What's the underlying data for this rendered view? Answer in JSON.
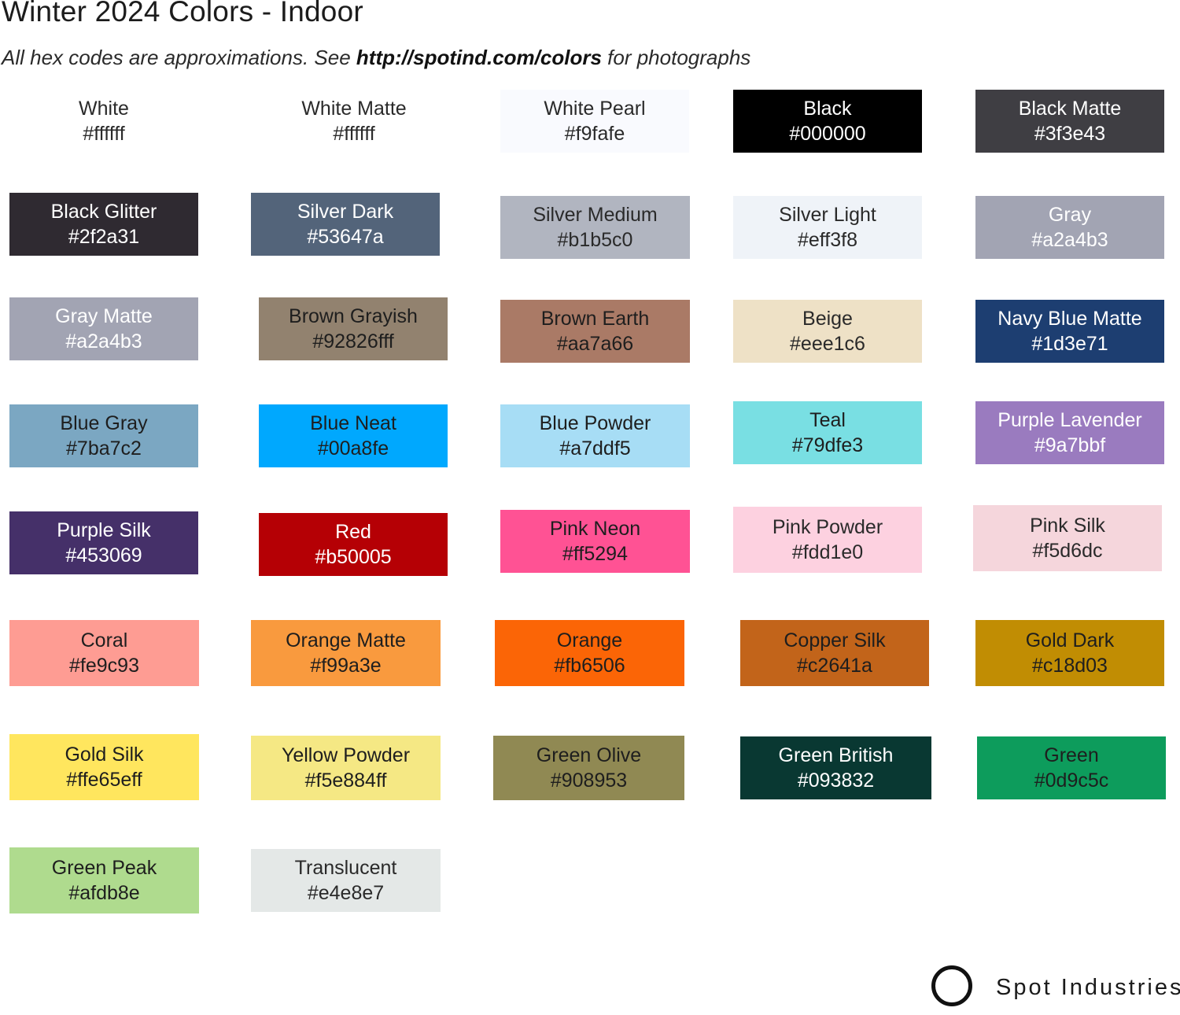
{
  "header": {
    "title": "Winter 2024 Colors - Indoor",
    "subtitle_prefix": "All hex codes are approximations. See ",
    "subtitle_link": "http://spotind.com/colors",
    "subtitle_suffix": " for photographs"
  },
  "colors": [
    {
      "name": "White",
      "hex": "#ffffff",
      "fill": "#ffffff",
      "text": "#2a2a2a"
    },
    {
      "name": "White Matte",
      "hex": "#ffffff",
      "fill": "#ffffff",
      "text": "#2a2a2a"
    },
    {
      "name": "White Pearl",
      "hex": "#f9fafe",
      "fill": "#f9fafe",
      "text": "#2a2a2a"
    },
    {
      "name": "Black",
      "hex": "#000000",
      "fill": "#000000",
      "text": "#ffffff"
    },
    {
      "name": "Black Matte",
      "hex": "#3f3e43",
      "fill": "#3f3e43",
      "text": "#ffffff"
    },
    {
      "name": "Black Glitter",
      "hex": "#2f2a31",
      "fill": "#2f2a31",
      "text": "#ffffff"
    },
    {
      "name": "Silver Dark",
      "hex": "#53647a",
      "fill": "#53647a",
      "text": "#ffffff"
    },
    {
      "name": "Silver Medium",
      "hex": "#b1b5c0",
      "fill": "#b1b5c0",
      "text": "#2a2a2a"
    },
    {
      "name": "Silver Light",
      "hex": "#eff3f8",
      "fill": "#eff3f8",
      "text": "#2a2a2a"
    },
    {
      "name": "Gray",
      "hex": "#a2a4b3",
      "fill": "#a2a4b3",
      "text": "#ffffff"
    },
    {
      "name": "Gray Matte",
      "hex": "#a2a4b3",
      "fill": "#a2a4b3",
      "text": "#ffffff"
    },
    {
      "name": "Brown Grayish",
      "hex": "#92826fff",
      "fill": "#92826f",
      "text": "#1e1e1e"
    },
    {
      "name": "Brown Earth",
      "hex": "#aa7a66",
      "fill": "#aa7a66",
      "text": "#1e1e1e"
    },
    {
      "name": "Beige",
      "hex": "#eee1c6",
      "fill": "#eee1c6",
      "text": "#2a2a2a"
    },
    {
      "name": "Navy Blue Matte",
      "hex": "#1d3e71",
      "fill": "#1d3e71",
      "text": "#ffffff"
    },
    {
      "name": "Blue Gray",
      "hex": "#7ba7c2",
      "fill": "#7ba7c2",
      "text": "#1e1e1e"
    },
    {
      "name": "Blue Neat",
      "hex": "#00a8fe",
      "fill": "#00a8fe",
      "text": "#1e1e1e"
    },
    {
      "name": "Blue Powder",
      "hex": "#a7ddf5",
      "fill": "#a7ddf5",
      "text": "#1e1e1e"
    },
    {
      "name": "Teal",
      "hex": "#79dfe3",
      "fill": "#79dfe3",
      "text": "#1e1e1e"
    },
    {
      "name": "Purple Lavender",
      "hex": "#9a7bbf",
      "fill": "#9a7bbf",
      "text": "#ffffff"
    },
    {
      "name": "Purple Silk",
      "hex": "#453069",
      "fill": "#453069",
      "text": "#ffffff"
    },
    {
      "name": "Red",
      "hex": "#b50005",
      "fill": "#b50005",
      "text": "#ffffff"
    },
    {
      "name": "Pink Neon",
      "hex": "#ff5294",
      "fill": "#ff5294",
      "text": "#1e1e1e"
    },
    {
      "name": "Pink Powder",
      "hex": "#fdd1e0",
      "fill": "#fdd1e0",
      "text": "#2a2a2a"
    },
    {
      "name": "Pink Silk",
      "hex": "#f5d6dc",
      "fill": "#f5d6dc",
      "text": "#2a2a2a"
    },
    {
      "name": "Coral",
      "hex": "#fe9c93",
      "fill": "#fe9c93",
      "text": "#1e1e1e"
    },
    {
      "name": "Orange Matte",
      "hex": "#f99a3e",
      "fill": "#f99a3e",
      "text": "#1e1e1e"
    },
    {
      "name": "Orange",
      "hex": "#fb6506",
      "fill": "#fb6506",
      "text": "#1e1e1e"
    },
    {
      "name": "Copper Silk",
      "hex": "#c2641a",
      "fill": "#c2641a",
      "text": "#1e1e1e"
    },
    {
      "name": "Gold Dark",
      "hex": "#c18d03",
      "fill": "#c18d03",
      "text": "#1e1e1e"
    },
    {
      "name": "Gold Silk",
      "hex": "#ffe65eff",
      "fill": "#ffe65e",
      "text": "#1e1e1e"
    },
    {
      "name": "Yellow Powder",
      "hex": "#f5e884ff",
      "fill": "#f5e884",
      "text": "#1e1e1e"
    },
    {
      "name": "Green Olive",
      "hex": "#908953",
      "fill": "#908953",
      "text": "#1e1e1e"
    },
    {
      "name": "Green British",
      "hex": "#093832",
      "fill": "#093832",
      "text": "#ffffff"
    },
    {
      "name": "Green",
      "hex": "#0d9c5c",
      "fill": "#0d9c5c",
      "text": "#1e1e1e"
    },
    {
      "name": "Green Peak",
      "hex": "#afdb8e",
      "fill": "#afdb8e",
      "text": "#1e1e1e"
    },
    {
      "name": "Translucent",
      "hex": "#e4e8e7",
      "fill": "#e4e8e7",
      "text": "#2a2a2a"
    }
  ],
  "brand": {
    "name": "Spot Industries",
    "logo_icon": "ring-logo-icon"
  }
}
